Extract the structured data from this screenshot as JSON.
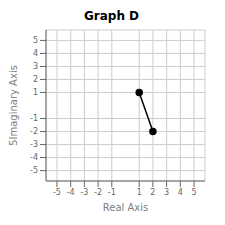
{
  "chart_data": {
    "type": "line",
    "title": "Graph D",
    "x_label": "Real Axis",
    "y_label": "5Imaginary Axis",
    "x": [
      1,
      2
    ],
    "values": [
      1,
      -2
    ],
    "color": "black",
    "marker": "circle",
    "xlim": [
      -5.8,
      5.8
    ],
    "ylim": [
      -5.8,
      5.8
    ],
    "xticks": [
      -5,
      -4,
      -3,
      -2,
      -1,
      1,
      2,
      3,
      4,
      5
    ],
    "yticks": [
      -5,
      -4,
      -3,
      -2,
      -1,
      1,
      2,
      3,
      4,
      5
    ],
    "grid": true
  }
}
